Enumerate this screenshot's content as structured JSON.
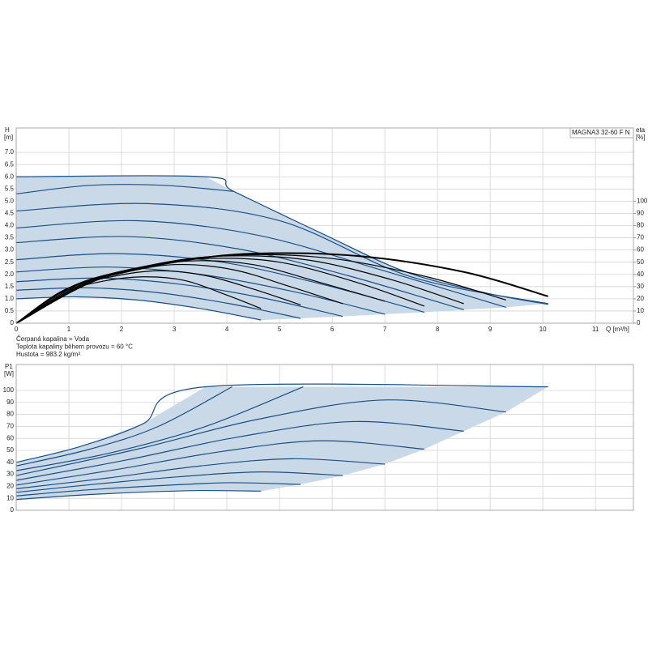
{
  "chart_data": [
    {
      "type": "line",
      "y_label": "H",
      "y_unit": "[m]",
      "y2_label": "eta",
      "y2_unit": "[%]",
      "x_label": "Q [m³/h]",
      "label_box": "MAGNA3 32-60 F N",
      "annotations": [
        "Čerpaná kapalina = Voda",
        "Teplota kapaliny během provozu = 60 °C",
        "Hustota = 983.2 kg/m³"
      ],
      "xlim": [
        0,
        11.72
      ],
      "xticks": [
        0,
        1,
        2,
        3,
        4,
        5,
        6,
        7,
        8,
        9,
        10,
        11
      ],
      "ylim": [
        0,
        8
      ],
      "yticks": [
        0,
        0.5,
        {
          "value": 1,
          "label": "1.0"
        },
        1.5,
        {
          "value": 2,
          "label": "2.0"
        },
        2.5,
        {
          "value": 3,
          "label": "3.0"
        },
        3.5,
        {
          "value": 4,
          "label": "4.0"
        },
        4.5,
        {
          "value": 5,
          "label": "5.0"
        },
        5.5,
        {
          "value": 6,
          "label": "6.0"
        },
        6.5,
        {
          "value": 7,
          "label": "7.0"
        }
      ],
      "y2lim": [
        0,
        160
      ],
      "y2ticks": [
        0,
        10,
        20,
        30,
        40,
        50,
        60,
        70,
        80,
        90,
        100
      ],
      "grid": true,
      "area_color": "#c9d9e7",
      "series": [
        {
          "color": "#1b4f84",
          "x": [
            0,
            3.6,
            4.13,
            5.85,
            7.4,
            8.94,
            10.1
          ],
          "values": [
            6.0,
            6.0,
            5.4,
            3.63,
            2.1,
            1.23,
            0.77
          ]
        },
        {
          "color": "#1b4f84",
          "x": [
            0,
            1.4,
            2.8,
            4.13
          ],
          "values": [
            5.3,
            5.65,
            5.65,
            5.4
          ]
        },
        {
          "color": "#1b4f84",
          "x": [
            0,
            2.5,
            5.0,
            7.5,
            10.1
          ],
          "values": [
            4.6,
            4.9,
            4.2,
            1.9,
            0.8
          ]
        },
        {
          "color": "#1b4f84",
          "x": [
            0,
            2.3,
            4.6,
            6.9,
            9.3
          ],
          "values": [
            3.9,
            4.2,
            3.6,
            2.2,
            0.65
          ]
        },
        {
          "color": "#1b4f84",
          "x": [
            0,
            2.1,
            4.2,
            6.3,
            8.5
          ],
          "values": [
            3.3,
            3.55,
            3.05,
            1.95,
            0.55
          ]
        },
        {
          "color": "#1b4f84",
          "x": [
            0,
            1.9,
            3.9,
            5.8,
            7.75
          ],
          "values": [
            2.6,
            2.85,
            2.5,
            1.6,
            0.45
          ]
        },
        {
          "color": "#1b4f84",
          "x": [
            0,
            1.75,
            3.5,
            5.25,
            7.0
          ],
          "values": [
            2.1,
            2.3,
            2.0,
            1.3,
            0.37
          ]
        },
        {
          "color": "#1b4f84",
          "x": [
            0,
            1.55,
            3.1,
            4.65,
            6.2
          ],
          "values": [
            1.7,
            1.85,
            1.6,
            1.05,
            0.28
          ]
        },
        {
          "color": "#1b4f84",
          "x": [
            0,
            1.35,
            2.7,
            4.05,
            5.4
          ],
          "values": [
            1.35,
            1.45,
            1.25,
            0.8,
            0.2
          ]
        },
        {
          "color": "#1b4f84",
          "x": [
            0,
            1.15,
            2.3,
            3.5,
            4.65
          ],
          "values": [
            1.0,
            1.08,
            0.95,
            0.6,
            0.13
          ]
        },
        {
          "color": "#000000",
          "axis": "y2",
          "x": [
            0,
            1.5,
            3,
            4.5,
            6.5,
            8.5,
            10.1
          ],
          "values": [
            0,
            35,
            50,
            57,
            55,
            42,
            22
          ]
        },
        {
          "color": "#000000",
          "axis": "y2",
          "x": [
            0,
            1.4,
            2.8,
            4.2,
            6,
            7.8,
            9.3
          ],
          "values": [
            0,
            34,
            49,
            56,
            53,
            38,
            19
          ]
        },
        {
          "color": "#000000",
          "axis": "y2",
          "x": [
            0,
            1.3,
            2.6,
            3.9,
            5.5,
            7.1,
            8.5
          ],
          "values": [
            0,
            33,
            48,
            55,
            52,
            36,
            16
          ]
        },
        {
          "color": "#000000",
          "axis": "y2",
          "x": [
            0,
            1.2,
            2.4,
            3.6,
            5,
            6.5,
            7.75
          ],
          "values": [
            0,
            32,
            46,
            53,
            50,
            33,
            14
          ]
        },
        {
          "color": "#000000",
          "axis": "y2",
          "x": [
            0,
            1.1,
            2.2,
            3.3,
            4.5,
            5.8,
            7.0
          ],
          "values": [
            0,
            31,
            44,
            51,
            48,
            33,
            18
          ]
        },
        {
          "color": "#000000",
          "axis": "y2",
          "x": [
            0,
            1,
            2,
            3,
            4.1,
            5.2,
            6.2
          ],
          "values": [
            0,
            29,
            41,
            48,
            44,
            30,
            16
          ]
        },
        {
          "color": "#000000",
          "axis": "y2",
          "x": [
            0,
            0.9,
            1.8,
            2.7,
            3.6,
            4.5,
            5.4
          ],
          "values": [
            0,
            27,
            38,
            43,
            39,
            28,
            15
          ]
        },
        {
          "color": "#000000",
          "axis": "y2",
          "x": [
            0,
            0.8,
            1.6,
            2.4,
            3.2,
            4,
            4.65
          ],
          "values": [
            0,
            24,
            34,
            38,
            35,
            23,
            12
          ]
        }
      ]
    },
    {
      "type": "line",
      "y_label": "P1",
      "y_unit": "[W]",
      "xlim": [
        0,
        11.72
      ],
      "ylim": [
        0,
        121.6
      ],
      "yticks": [
        0,
        10,
        20,
        30,
        40,
        50,
        60,
        70,
        80,
        90,
        100
      ],
      "grid": true,
      "area_color": "#c9d9e7",
      "series": [
        {
          "color": "#1b4f84",
          "x": [
            0,
            1.2,
            2.4,
            3.6,
            10.1
          ],
          "values": [
            40,
            53,
            72,
            103,
            103
          ]
        },
        {
          "color": "#1b4f84",
          "x": [
            0,
            1.4,
            2.7,
            4.1
          ],
          "values": [
            37,
            51,
            70,
            103
          ]
        },
        {
          "color": "#1b4f84",
          "x": [
            0,
            1.8,
            3.6,
            5.45
          ],
          "values": [
            33,
            48,
            70,
            103
          ]
        },
        {
          "color": "#1b4f84",
          "x": [
            0,
            2.3,
            4.6,
            7.0,
            9.3
          ],
          "values": [
            29,
            51,
            76,
            92,
            82
          ]
        },
        {
          "color": "#1b4f84",
          "x": [
            0,
            2.1,
            4.2,
            6.4,
            8.5
          ],
          "values": [
            25,
            42,
            61,
            74,
            66
          ]
        },
        {
          "color": "#1b4f84",
          "x": [
            0,
            1.9,
            3.9,
            5.8,
            7.75
          ],
          "values": [
            21,
            34,
            49,
            58,
            51
          ]
        },
        {
          "color": "#1b4f84",
          "x": [
            0,
            1.75,
            3.5,
            5.25,
            7.0
          ],
          "values": [
            18,
            27,
            37,
            43,
            38.5
          ]
        },
        {
          "color": "#1b4f84",
          "x": [
            0,
            1.55,
            3.1,
            4.65,
            6.2
          ],
          "values": [
            15,
            22,
            28,
            32,
            29
          ]
        },
        {
          "color": "#1b4f84",
          "x": [
            0,
            1.35,
            2.7,
            4.05,
            5.4
          ],
          "values": [
            12,
            17,
            20.5,
            23,
            21.6
          ]
        },
        {
          "color": "#1b4f84",
          "x": [
            0,
            1.15,
            2.3,
            3.5,
            4.65
          ],
          "values": [
            9,
            12.5,
            15,
            16.5,
            16
          ]
        }
      ]
    }
  ]
}
